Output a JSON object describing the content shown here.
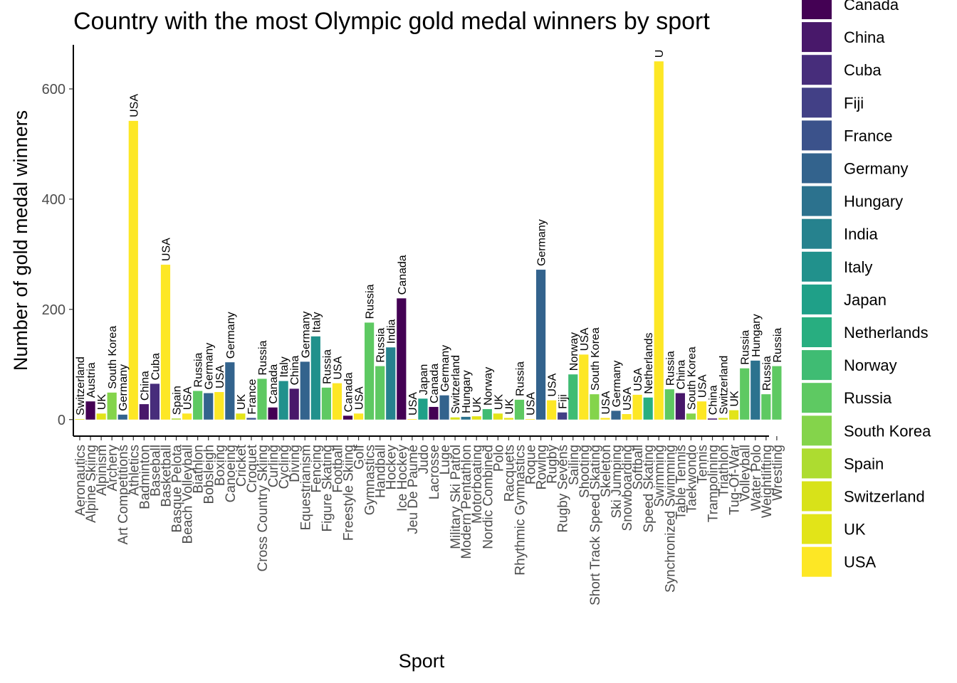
{
  "chart_data": {
    "type": "bar",
    "title": "Country with the most Olympic gold medal winners by sport",
    "xlabel": "Sport",
    "ylabel": "Number of gold medal winners",
    "ylim": [
      -30,
      680
    ],
    "yticks": [
      0,
      200,
      400,
      600
    ],
    "grid": false,
    "legend_position": "right",
    "categories": [
      "Aeronautics",
      "Alpine Skiing",
      "Alpinism",
      "Archery",
      "Art Competitions",
      "Athletics",
      "Badminton",
      "Baseball",
      "Basketball",
      "Basque Pelota",
      "Beach Volleyball",
      "Biathlon",
      "Bobsleigh",
      "Boxing",
      "Canoeing",
      "Cricket",
      "Croquet",
      "Cross Country Skiing",
      "Curling",
      "Cycling",
      "Diving",
      "Equestrianism",
      "Fencing",
      "Figure Skating",
      "Football",
      "Freestyle Skiing",
      "Golf",
      "Gymnastics",
      "Handball",
      "Hockey",
      "Ice Hockey",
      "Jeu De Paume",
      "Judo",
      "Lacrosse",
      "Luge",
      "Military Ski Patrol",
      "Modern Pentathlon",
      "Motorboating",
      "Nordic Combined",
      "Polo",
      "Racquets",
      "Rhythmic Gymnastics",
      "Roque",
      "Rowing",
      "Rugby",
      "Rugby Sevens",
      "Sailing",
      "Shooting",
      "Short Track Speed Skating",
      "Skeleton",
      "Ski Jumping",
      "Snowboarding",
      "Softball",
      "Speed Skating",
      "Swimming",
      "Synchronized Swimming",
      "Table Tennis",
      "Taekwondo",
      "Tennis",
      "Trampolining",
      "Triathlon",
      "Tug-Of-War",
      "Volleyball",
      "Water Polo",
      "Weightlifting",
      "Wrestling"
    ],
    "values": [
      1,
      33,
      11,
      49,
      9,
      542,
      28,
      65,
      281,
      2,
      11,
      52,
      48,
      50,
      104,
      11,
      3,
      74,
      22,
      70,
      56,
      105,
      151,
      58,
      66,
      7,
      11,
      176,
      97,
      131,
      220,
      1,
      38,
      23,
      44,
      4,
      5,
      6,
      19,
      11,
      3,
      36,
      1,
      272,
      35,
      13,
      82,
      118,
      46,
      3,
      16,
      10,
      45,
      40,
      650,
      55,
      48,
      11,
      33,
      2,
      3,
      17,
      93,
      107,
      46,
      97
    ],
    "countries": [
      "Switzerland",
      "Austria",
      "UK",
      "South Korea",
      "Germany",
      "USA",
      "China",
      "Cuba",
      "USA",
      "Spain",
      "USA",
      "Russia",
      "Germany",
      "USA",
      "Germany",
      "UK",
      "France",
      "Russia",
      "Canada",
      "Italy",
      "China",
      "Germany",
      "Italy",
      "Russia",
      "USA",
      "Canada",
      "USA",
      "Russia",
      "Russia",
      "India",
      "Canada",
      "USA",
      "Japan",
      "Canada",
      "Germany",
      "Switzerland",
      "Hungary",
      "UK",
      "Norway",
      "UK",
      "UK",
      "Russia",
      "USA",
      "Germany",
      "USA",
      "Fiji",
      "Norway",
      "USA",
      "South Korea",
      "USA",
      "Germany",
      "USA",
      "USA",
      "Netherlands",
      "U",
      "Russia",
      "China",
      "South Korea",
      "USA",
      "China",
      "Switzerland",
      "UK",
      "Russia",
      "Hungary",
      "Russia",
      "Russia"
    ],
    "legend": [
      {
        "name": "Canada",
        "color": "#440154"
      },
      {
        "name": "China",
        "color": "#48186a"
      },
      {
        "name": "Cuba",
        "color": "#472d7b"
      },
      {
        "name": "Fiji",
        "color": "#424086"
      },
      {
        "name": "France",
        "color": "#3b528b"
      },
      {
        "name": "Germany",
        "color": "#33638d"
      },
      {
        "name": "Hungary",
        "color": "#2c728e"
      },
      {
        "name": "India",
        "color": "#26828e"
      },
      {
        "name": "Italy",
        "color": "#21918c"
      },
      {
        "name": "Japan",
        "color": "#1fa088"
      },
      {
        "name": "Netherlands",
        "color": "#28ae80"
      },
      {
        "name": "Norway",
        "color": "#3fbc73"
      },
      {
        "name": "Russia",
        "color": "#5ec962"
      },
      {
        "name": "South Korea",
        "color": "#84d44b"
      },
      {
        "name": "Spain",
        "color": "#addc30"
      },
      {
        "name": "Switzerland",
        "color": "#d8e219"
      },
      {
        "name": "UK",
        "color": "#e2e418"
      },
      {
        "name": "USA",
        "color": "#fde725"
      }
    ],
    "austria_color": "#440154"
  }
}
